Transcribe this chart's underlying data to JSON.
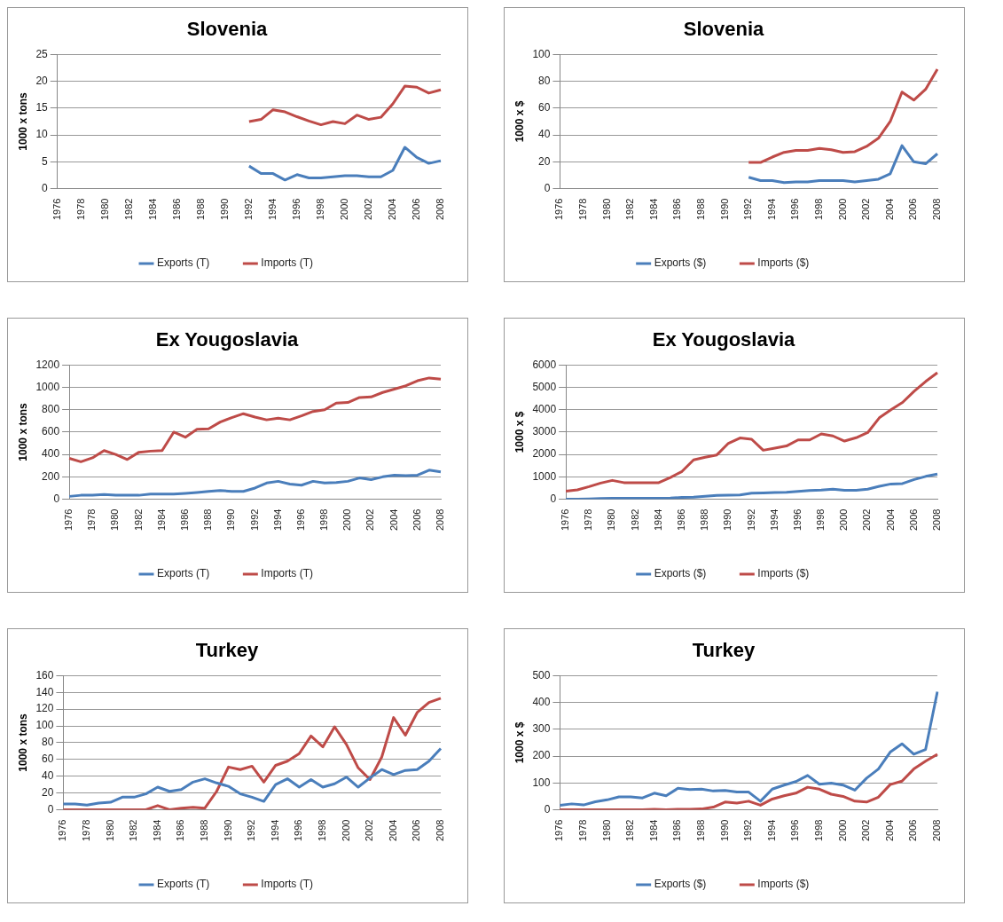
{
  "chart_data": [
    {
      "type": "line",
      "title": "Slovenia",
      "ylabel": "1000 x tons",
      "categories": [
        "1976",
        null,
        "1978",
        null,
        "1980",
        null,
        "1982",
        null,
        "1984",
        null,
        "1986",
        null,
        "1988",
        null,
        "1990",
        null,
        "1992",
        null,
        "1994",
        null,
        "1996",
        null,
        "1998",
        null,
        "2000",
        null,
        "2002",
        null,
        "2004",
        null,
        "2006",
        null,
        "2008"
      ],
      "ylim": [
        0,
        25
      ],
      "yticks": [
        0,
        5,
        10,
        15,
        20,
        25
      ],
      "grid": "y",
      "legend": "bottom",
      "marker": "none",
      "series": [
        {
          "name": "Exports (T)",
          "color": "#4a7ebb",
          "values": [
            null,
            null,
            null,
            null,
            null,
            null,
            null,
            null,
            null,
            null,
            null,
            null,
            null,
            null,
            null,
            null,
            4.2,
            2.8,
            2.8,
            1.6,
            2.6,
            2.0,
            2.0,
            2.2,
            2.4,
            2.4,
            2.2,
            2.2,
            3.4,
            7.7,
            5.8,
            4.7,
            5.2
          ]
        },
        {
          "name": "Imports (T)",
          "color": "#be4b48",
          "values": [
            null,
            null,
            null,
            null,
            null,
            null,
            null,
            null,
            null,
            null,
            null,
            null,
            null,
            null,
            null,
            null,
            12.5,
            12.9,
            14.7,
            14.3,
            13.4,
            12.6,
            11.9,
            12.5,
            12.1,
            13.7,
            12.9,
            13.3,
            15.8,
            19.1,
            18.9,
            17.8,
            18.4
          ]
        }
      ]
    },
    {
      "type": "line",
      "title": "Slovenia",
      "ylabel": "1000 x $",
      "categories": [
        "1976",
        null,
        "1978",
        null,
        "1980",
        null,
        "1982",
        null,
        "1984",
        null,
        "1986",
        null,
        "1988",
        null,
        "1990",
        null,
        "1992",
        null,
        "1994",
        null,
        "1996",
        null,
        "1998",
        null,
        "2000",
        null,
        "2002",
        null,
        "2004",
        null,
        "2006",
        null,
        "2008"
      ],
      "ylim": [
        0,
        100
      ],
      "yticks": [
        0,
        20,
        40,
        60,
        80,
        100
      ],
      "grid": "y",
      "legend": "bottom",
      "marker": "none",
      "series": [
        {
          "name": "Exports ($)",
          "color": "#4a7ebb",
          "values": [
            null,
            null,
            null,
            null,
            null,
            null,
            null,
            null,
            null,
            null,
            null,
            null,
            null,
            null,
            null,
            null,
            8.5,
            6,
            6,
            4.5,
            5,
            5,
            6,
            6,
            6,
            5,
            6,
            7,
            11,
            32,
            20,
            18.5,
            26
          ]
        },
        {
          "name": "Imports ($)",
          "color": "#be4b48",
          "values": [
            null,
            null,
            null,
            null,
            null,
            null,
            null,
            null,
            null,
            null,
            null,
            null,
            null,
            null,
            null,
            null,
            19.5,
            19.5,
            23.5,
            27,
            28.5,
            28.5,
            30,
            29,
            27,
            27.5,
            31.5,
            37.5,
            50,
            72,
            66,
            74,
            89
          ]
        }
      ]
    },
    {
      "type": "line",
      "title": "Ex Yougoslavia",
      "ylabel": "1000 x tons",
      "categories": [
        "1976",
        null,
        "1978",
        null,
        "1980",
        null,
        "1982",
        null,
        "1984",
        null,
        "1986",
        null,
        "1988",
        null,
        "1990",
        null,
        "1992",
        null,
        "1994",
        null,
        "1996",
        null,
        "1998",
        null,
        "2000",
        null,
        "2002",
        null,
        "2004",
        null,
        "2006",
        null,
        "2008"
      ],
      "ylim": [
        0,
        1200
      ],
      "yticks": [
        0,
        200,
        400,
        600,
        800,
        1000,
        1200
      ],
      "grid": "y",
      "legend": "bottom",
      "marker": "none",
      "series": [
        {
          "name": "Exports (T)",
          "color": "#4a7ebb",
          "values": [
            25,
            35,
            35,
            42,
            35,
            35,
            35,
            45,
            45,
            45,
            52,
            60,
            70,
            78,
            70,
            70,
            100,
            145,
            160,
            135,
            125,
            160,
            145,
            150,
            160,
            190,
            175,
            200,
            215,
            210,
            215,
            260,
            245
          ]
        },
        {
          "name": "Imports (T)",
          "color": "#be4b48",
          "values": [
            365,
            335,
            370,
            435,
            400,
            355,
            420,
            430,
            435,
            600,
            555,
            625,
            630,
            690,
            730,
            765,
            735,
            710,
            725,
            710,
            745,
            785,
            800,
            860,
            865,
            910,
            915,
            955,
            985,
            1015,
            1060,
            1085,
            1075
          ]
        }
      ]
    },
    {
      "type": "line",
      "title": "Ex Yougoslavia",
      "ylabel": "1000 x $",
      "categories": [
        "1976",
        null,
        "1978",
        null,
        "1980",
        null,
        "1982",
        null,
        "1984",
        null,
        "1986",
        null,
        "1988",
        null,
        "1990",
        null,
        "1992",
        null,
        "1994",
        null,
        "1996",
        null,
        "1998",
        null,
        "2000",
        null,
        "2002",
        null,
        "2004",
        null,
        "2006",
        null,
        "2008"
      ],
      "ylim": [
        0,
        6000
      ],
      "yticks": [
        0,
        1000,
        2000,
        3000,
        4000,
        5000,
        6000
      ],
      "grid": "y",
      "legend": "bottom",
      "marker": "none",
      "series": [
        {
          "name": "Exports ($)",
          "color": "#4a7ebb",
          "values": [
            0,
            0,
            10,
            30,
            40,
            40,
            40,
            40,
            40,
            50,
            80,
            90,
            130,
            170,
            180,
            190,
            270,
            280,
            300,
            310,
            350,
            390,
            410,
            450,
            400,
            400,
            450,
            580,
            680,
            700,
            880,
            1020,
            1120
          ]
        },
        {
          "name": "Imports ($)",
          "color": "#be4b48",
          "values": [
            360,
            420,
            560,
            720,
            840,
            740,
            740,
            740,
            740,
            970,
            1240,
            1760,
            1880,
            1980,
            2500,
            2740,
            2680,
            2190,
            2280,
            2380,
            2650,
            2650,
            2920,
            2830,
            2600,
            2750,
            2980,
            3640,
            4000,
            4330,
            4830,
            5270,
            5660
          ]
        }
      ]
    },
    {
      "type": "line",
      "title": "Turkey",
      "ylabel": "1000 x tons",
      "categories": [
        "1976",
        null,
        "1978",
        null,
        "1980",
        null,
        "1982",
        null,
        "1984",
        null,
        "1986",
        null,
        "1988",
        null,
        "1990",
        null,
        "1992",
        null,
        "1994",
        null,
        "1996",
        null,
        "1998",
        null,
        "2000",
        null,
        "2002",
        null,
        "2004",
        null,
        "2006",
        null,
        "2008"
      ],
      "ylim": [
        0,
        160
      ],
      "yticks": [
        0,
        20,
        40,
        60,
        80,
        100,
        120,
        140,
        160
      ],
      "grid": "y",
      "legend": "bottom",
      "marker": "none",
      "series": [
        {
          "name": "Exports (T)",
          "color": "#4a7ebb",
          "values": [
            7,
            7,
            5.5,
            8,
            9,
            15,
            15,
            19,
            27,
            22,
            24,
            33,
            37,
            32,
            28,
            19,
            15,
            10,
            30,
            37,
            27,
            36,
            27,
            31,
            39,
            27,
            38,
            48,
            42,
            47,
            48,
            58,
            73
          ]
        },
        {
          "name": "Imports (T)",
          "color": "#be4b48",
          "values": [
            0,
            0,
            0,
            0,
            0,
            0,
            0,
            0,
            5,
            0,
            2,
            3,
            2,
            22,
            51,
            48,
            52,
            33,
            53,
            58,
            67,
            88,
            75,
            99,
            78,
            50,
            36,
            63,
            110,
            89,
            116,
            128,
            133
          ]
        }
      ]
    },
    {
      "type": "line",
      "title": "Turkey",
      "ylabel": "1000 x $",
      "categories": [
        "1976",
        null,
        "1978",
        null,
        "1980",
        null,
        "1982",
        null,
        "1984",
        null,
        "1986",
        null,
        "1988",
        null,
        "1990",
        null,
        "1992",
        null,
        "1994",
        null,
        "1996",
        null,
        "1998",
        null,
        "2000",
        null,
        "2002",
        null,
        "2004",
        null,
        "2006",
        null,
        "2008"
      ],
      "ylim": [
        0,
        500
      ],
      "yticks": [
        0,
        100,
        200,
        300,
        400,
        500
      ],
      "grid": "y",
      "legend": "bottom",
      "marker": "none",
      "series": [
        {
          "name": "Exports ($)",
          "color": "#4a7ebb",
          "values": [
            17,
            22,
            18,
            30,
            37,
            48,
            48,
            44,
            62,
            52,
            80,
            75,
            77,
            70,
            72,
            66,
            66,
            32,
            77,
            92,
            105,
            128,
            95,
            99,
            92,
            73,
            118,
            152,
            215,
            246,
            207,
            225,
            440
          ]
        },
        {
          "name": "Imports ($)",
          "color": "#be4b48",
          "values": [
            0,
            0,
            0,
            0,
            0,
            0,
            0,
            0,
            2,
            0,
            2,
            2,
            3,
            10,
            29,
            25,
            32,
            17,
            40,
            52,
            62,
            84,
            77,
            58,
            50,
            32,
            29,
            47,
            94,
            107,
            152,
            181,
            207
          ]
        }
      ]
    }
  ]
}
